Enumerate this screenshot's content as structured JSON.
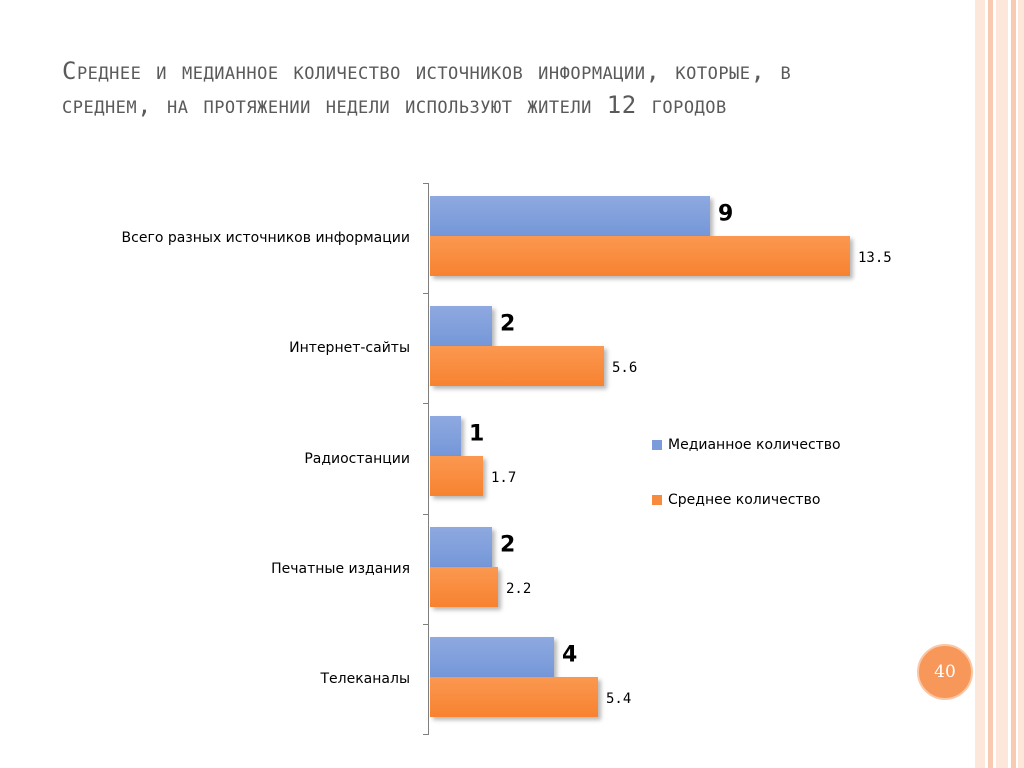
{
  "slide": {
    "title": "Среднее и медианное количество источников информации, которые, в среднем, на протяжении недели используют жители 12 городов",
    "page_number": "40",
    "colors": {
      "accent": "#f7985a",
      "stripe": "#fbd3c0",
      "title": "#5a5a5a"
    }
  },
  "chart_data": {
    "type": "bar",
    "orientation": "horizontal",
    "title": "",
    "xlabel": "",
    "ylabel": "",
    "categories": [
      "Всего разных источников информации",
      "Интернет-сайты",
      "Радиостанции",
      "Печатные издания",
      "Телеканалы"
    ],
    "series": [
      {
        "name": "Медианное количество",
        "values": [
          9,
          2,
          1,
          2,
          4
        ],
        "labels": [
          "9",
          "2",
          "1",
          "2",
          "4"
        ],
        "color": "#7b9cdb"
      },
      {
        "name": "Среднее количество",
        "values": [
          13.5,
          5.6,
          1.7,
          2.2,
          5.4
        ],
        "labels": [
          "13.5",
          "5.6",
          "1.7",
          "2.2",
          "5.4"
        ],
        "color": "#f78a3c"
      }
    ],
    "xlim": [
      0,
      13.5
    ],
    "grid": false,
    "legend_position": "right"
  }
}
